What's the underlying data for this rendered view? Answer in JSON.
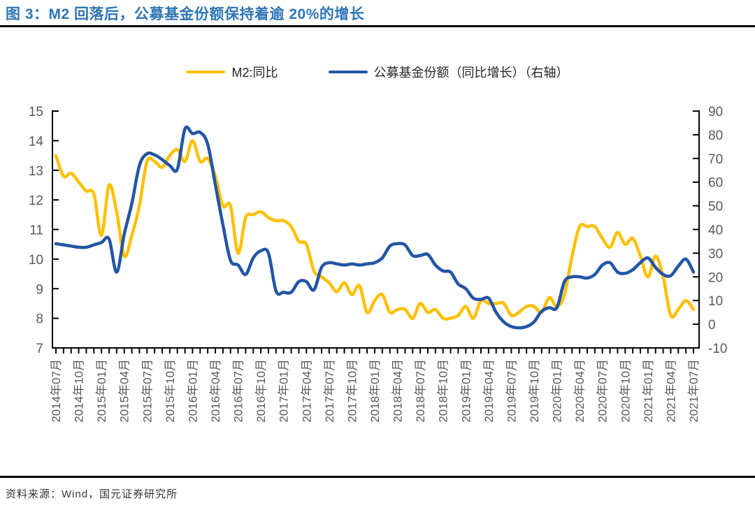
{
  "title": "图 3：M2 回落后，公募基金份额保持着逾 20%的增长",
  "legend": {
    "items": [
      {
        "label": "M2:同比",
        "color": "#FFC000"
      },
      {
        "label": "公募基金份额（同比增长）（右轴）",
        "color": "#2355A4"
      }
    ]
  },
  "footer": {
    "source": "资料来源：Wind，国元证券研究所"
  },
  "colors": {
    "title": "#2E75B6",
    "axis_line": "#000000",
    "tick_label": "#595959",
    "m2_line": "#FFC000",
    "fund_line": "#2355A4"
  },
  "chart_data": {
    "type": "line",
    "title": "M2 回落后，公募基金份额保持着逾 20%的增长",
    "x_interval": "monthly",
    "x_start": "2014年07月",
    "x_end": "2021年07月",
    "x_tick_labels": [
      "2014年07月",
      "2014年10月",
      "2015年01月",
      "2015年04月",
      "2015年07月",
      "2015年10月",
      "2016年01月",
      "2016年04月",
      "2016年07月",
      "2016年10月",
      "2017年01月",
      "2017年04月",
      "2017年07月",
      "2017年10月",
      "2018年01月",
      "2018年04月",
      "2018年07月",
      "2018年10月",
      "2019年01月",
      "2019年04月",
      "2019年07月",
      "2019年10月",
      "2020年01月",
      "2020年04月",
      "2020年07月",
      "2020年10月",
      "2021年01月",
      "2021年04月",
      "2021年07月"
    ],
    "left_axis": {
      "min": 7,
      "max": 15,
      "ticks": [
        15,
        14,
        13,
        12,
        11,
        10,
        9,
        8,
        7
      ]
    },
    "right_axis": {
      "min": -10,
      "max": 90,
      "ticks": [
        90,
        80,
        70,
        60,
        50,
        40,
        30,
        20,
        10,
        0,
        -10
      ]
    },
    "grid": false,
    "legend_position": "top",
    "series": [
      {
        "name": "M2:同比",
        "axis": "left",
        "color": "#FFC000",
        "values": [
          13.5,
          12.8,
          12.9,
          12.6,
          12.3,
          12.2,
          10.8,
          12.5,
          11.6,
          10.1,
          10.8,
          11.8,
          13.3,
          13.3,
          13.1,
          13.5,
          13.7,
          13.3,
          14.0,
          13.3,
          13.4,
          12.8,
          11.8,
          11.8,
          10.2,
          11.4,
          11.5,
          11.6,
          11.4,
          11.3,
          11.3,
          11.1,
          10.6,
          10.5,
          9.6,
          9.4,
          9.2,
          8.9,
          9.2,
          8.8,
          9.1,
          8.2,
          8.6,
          8.8,
          8.2,
          8.3,
          8.3,
          8.0,
          8.5,
          8.2,
          8.3,
          8.0,
          8.0,
          8.1,
          8.4,
          8.0,
          8.6,
          8.5,
          8.5,
          8.5,
          8.1,
          8.2,
          8.4,
          8.4,
          8.2,
          8.7,
          8.4,
          8.8,
          10.1,
          11.1,
          11.1,
          11.1,
          10.7,
          10.4,
          10.9,
          10.5,
          10.7,
          10.1,
          9.4,
          10.1,
          9.4,
          8.1,
          8.3,
          8.6,
          8.3
        ]
      },
      {
        "name": "公募基金份额（同比增长）（右轴）",
        "axis": "right",
        "color": "#2355A4",
        "values": [
          34,
          33.5,
          33,
          32.5,
          32.5,
          33.5,
          34.5,
          36,
          22,
          38,
          51,
          67,
          72,
          71.5,
          69.5,
          67,
          65.5,
          82.5,
          80.5,
          81,
          76,
          59,
          42,
          27,
          25,
          21,
          28,
          31,
          30,
          14,
          13.5,
          13.5,
          18,
          18,
          14.5,
          24,
          26,
          25.5,
          25,
          25.5,
          25,
          25.5,
          26,
          28,
          33,
          34,
          33.5,
          29,
          29,
          29.5,
          25,
          22.5,
          22,
          17,
          15,
          11,
          10.5,
          11,
          5,
          1,
          -1,
          -1.5,
          -1,
          1,
          5.5,
          7,
          7,
          18,
          20,
          20,
          19.5,
          21,
          25,
          26,
          22,
          21.5,
          23,
          26,
          28,
          24,
          21,
          20.5,
          24.5,
          27.5,
          22
        ]
      }
    ]
  }
}
